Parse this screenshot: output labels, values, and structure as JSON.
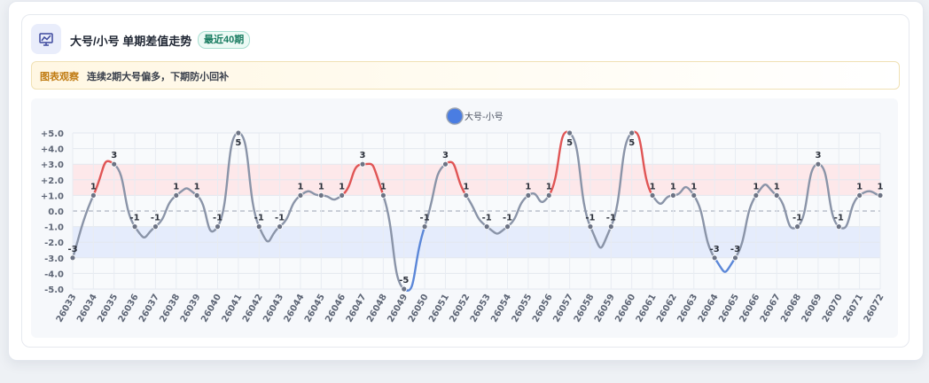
{
  "header": {
    "title": "大号/小号 单期差值走势",
    "badge": "最近40期",
    "icon": "chart-line-icon"
  },
  "note": {
    "tag": "图表观察",
    "text": "连续2期大号偏多，下期防小回补"
  },
  "chart_data": {
    "type": "line",
    "title": "",
    "xlabel": "",
    "ylabel": "",
    "legend_position": "top-center",
    "ylim": [
      -5,
      5
    ],
    "y_ticks": [
      "+5.0",
      "+4.0",
      "+3.0",
      "+2.0",
      "+1.0",
      "0.0",
      "-1.0",
      "-2.0",
      "-3.0",
      "-4.0",
      "-5.0"
    ],
    "bands": [
      {
        "from": 1,
        "to": 3,
        "color": "#fde8ea"
      },
      {
        "from": -3,
        "to": -1,
        "color": "#e5ecfc"
      }
    ],
    "categories": [
      "26033",
      "26034",
      "26035",
      "26036",
      "26037",
      "26038",
      "26039",
      "26040",
      "26041",
      "26042",
      "26043",
      "26044",
      "26045",
      "26046",
      "26047",
      "26048",
      "26049",
      "26050",
      "26051",
      "26052",
      "26053",
      "26054",
      "26055",
      "26056",
      "26057",
      "26058",
      "26059",
      "26060",
      "26061",
      "26062",
      "26063",
      "26064",
      "26065",
      "26066",
      "26067",
      "26068",
      "26069",
      "26070",
      "26071",
      "26072"
    ],
    "series": [
      {
        "name": "大号-小号",
        "values": [
          -3,
          1,
          3,
          -1,
          -1,
          1,
          1,
          -1,
          5,
          -1,
          -1,
          1,
          1,
          1,
          3,
          1,
          -5,
          -1,
          3,
          1,
          -1,
          -1,
          1,
          1,
          5,
          -1,
          -1,
          5,
          1,
          1,
          1,
          -3,
          -3,
          1,
          1,
          -1,
          3,
          -1,
          1,
          1
        ]
      }
    ],
    "colors": {
      "line": "#8a94a8",
      "high": "#e05555",
      "low": "#5b87d8",
      "point": "#6c7384",
      "legend": "#4a7de2"
    }
  }
}
